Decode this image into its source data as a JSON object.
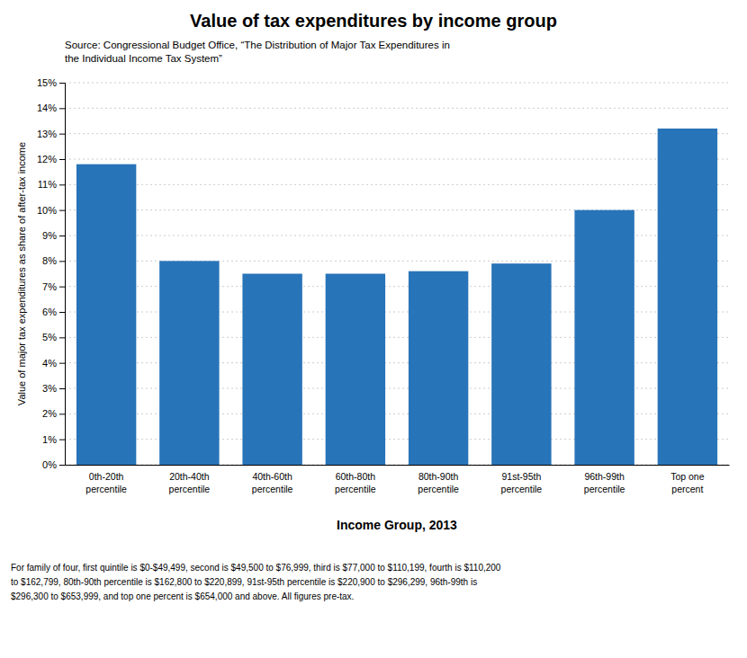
{
  "chart_data": {
    "type": "bar",
    "title": "Value of tax expenditures by income group",
    "subtitle": [
      "Source: Congressional Budget Office, “The Distribution of Major Tax Expenditures in",
      "the Individual Income Tax System”"
    ],
    "categories": [
      "0th-20th\npercentile",
      "20th-40th\npercentile",
      "40th-60th\npercentile",
      "60th-80th\npercentile",
      "80th-90th\npercentile",
      "91st-95th\npercentile",
      "96th-99th\npercentile",
      "Top one\npercent"
    ],
    "values": [
      11.8,
      8.0,
      7.5,
      7.5,
      7.6,
      7.9,
      10.0,
      13.2
    ],
    "color": "#2874b8",
    "x_label": "Income Group, 2013",
    "y_label": "Value of major tax expenditures as share of after-tax income",
    "ylim": [
      0,
      15
    ],
    "yticks": [
      {
        "value": 0,
        "label": "0%"
      },
      {
        "value": 1,
        "label": "1%"
      },
      {
        "value": 2,
        "label": "2%"
      },
      {
        "value": 3,
        "label": "3%"
      },
      {
        "value": 4,
        "label": "4%"
      },
      {
        "value": 5,
        "label": "5%"
      },
      {
        "value": 6,
        "label": "6%"
      },
      {
        "value": 7,
        "label": "7%"
      },
      {
        "value": 8,
        "label": "8%"
      },
      {
        "value": 9,
        "label": "9%"
      },
      {
        "value": 10,
        "label": "10%"
      },
      {
        "value": 11,
        "label": "11%"
      },
      {
        "value": 12,
        "label": "12%"
      },
      {
        "value": 13,
        "label": "13%"
      },
      {
        "value": 14,
        "label": "14%"
      },
      {
        "value": 15,
        "label": "15%"
      }
    ],
    "grid": true,
    "annotations": [
      "For family of four, first quintile is $0-$49,499, second is $49,500 to $76,999, third is $77,000 to $110,199, fourth is $110,200",
      "to $162,799, 80th-90th percentile is $162,800 to $220,899, 91st-95th percentile is $220,900 to $296,299, 96th-99th is",
      "$296,300 to $653,999, and top one percent is $654,000 and above. All figures pre-tax."
    ]
  }
}
